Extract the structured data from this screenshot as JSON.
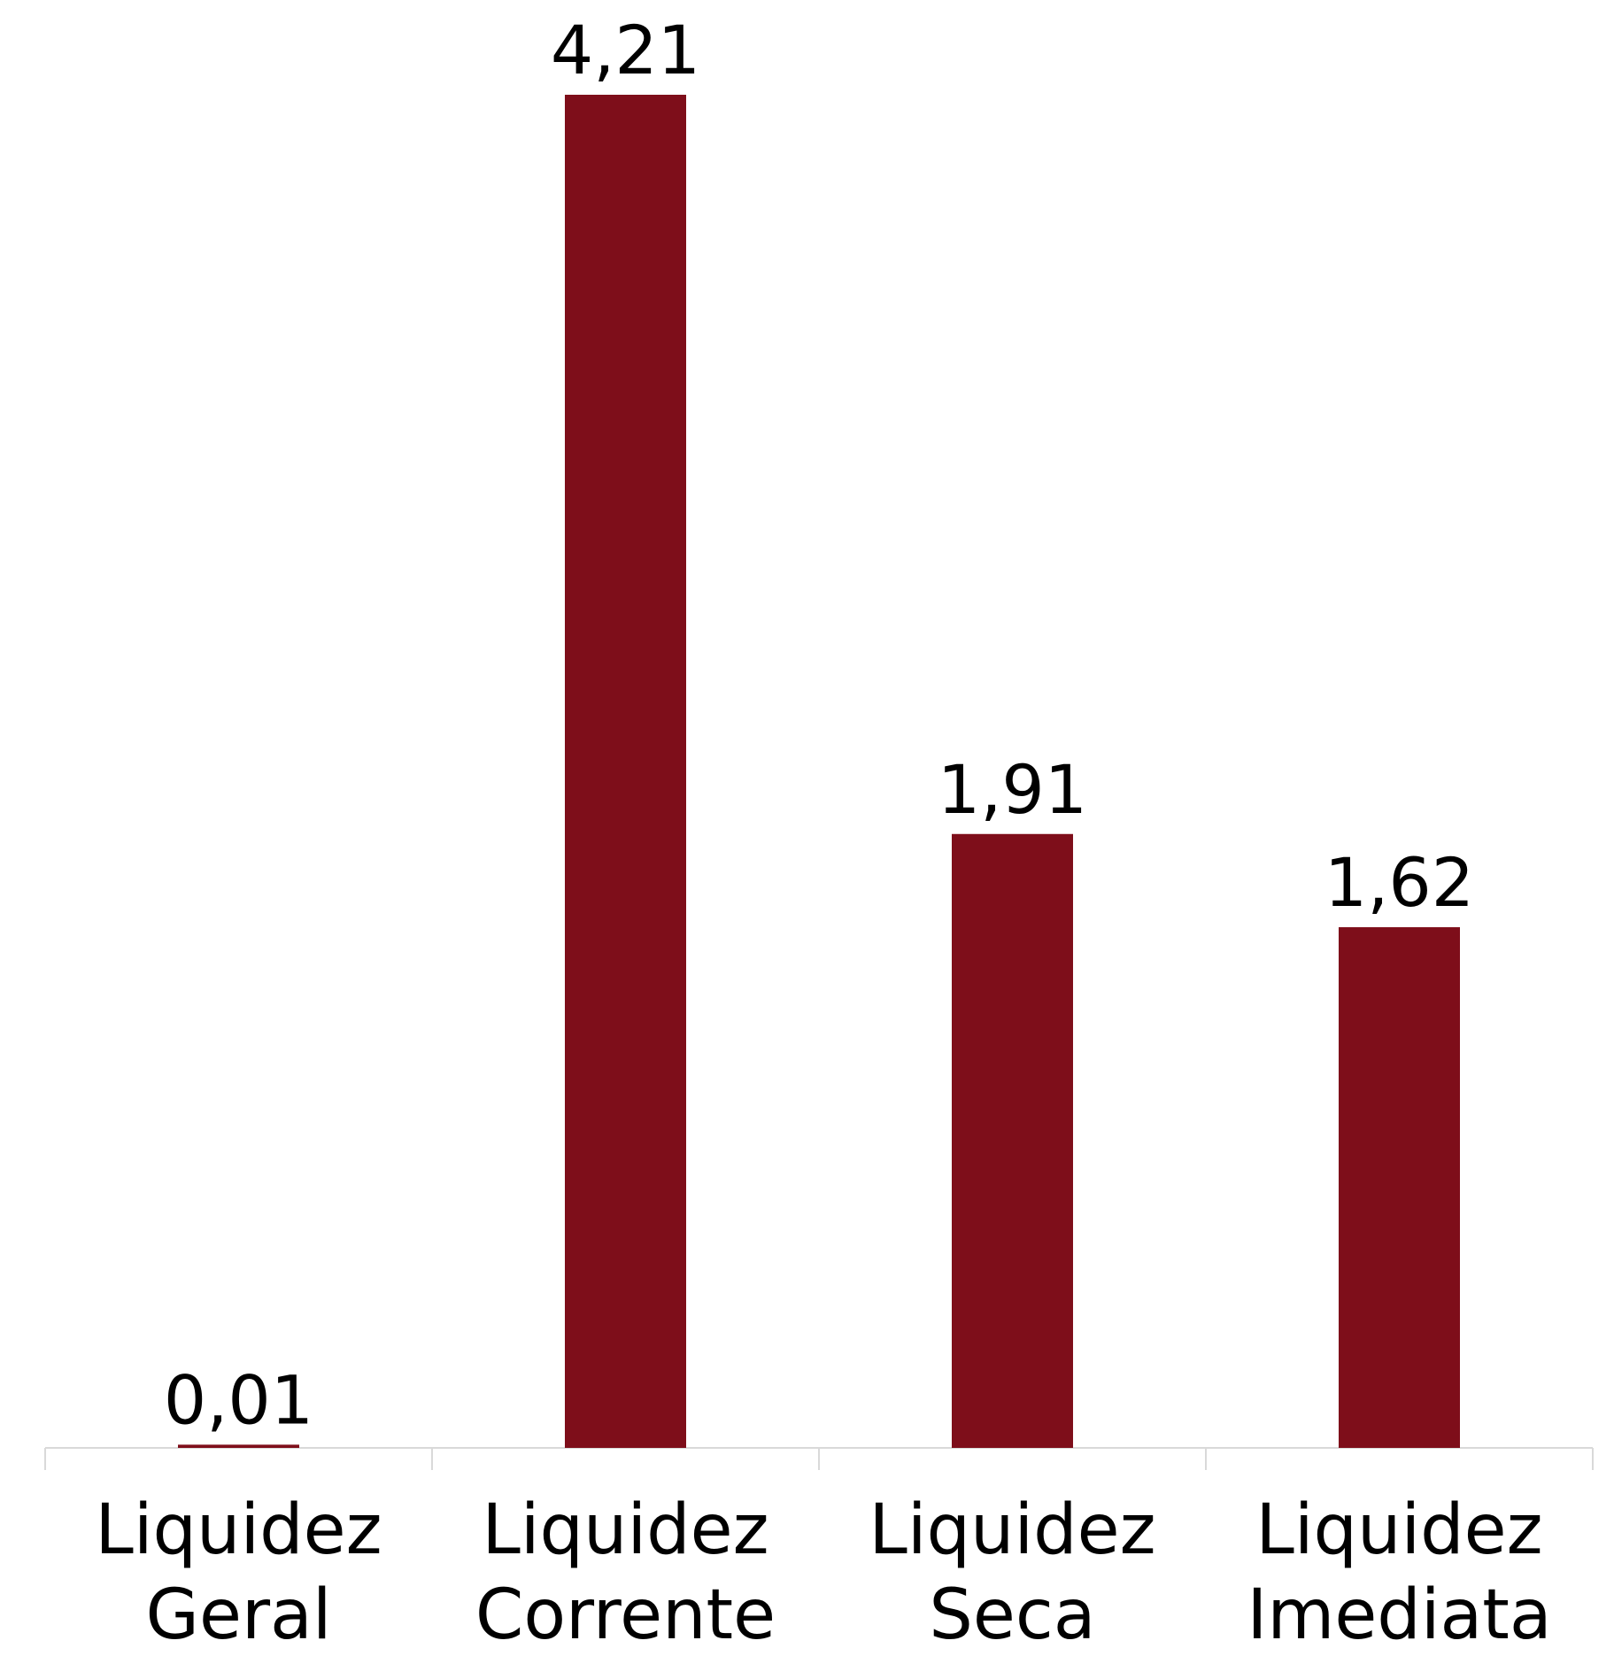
{
  "chart_data": {
    "type": "bar",
    "categories": [
      "Liquidez Geral",
      "Liquidez Corrente",
      "Liquidez Seca",
      "Liquidez Imediata"
    ],
    "values": [
      0.01,
      4.21,
      1.91,
      1.62
    ],
    "value_labels": [
      "0,01",
      "4,21",
      "1,91",
      "1,62"
    ],
    "color": "#7e0e1a"
  }
}
